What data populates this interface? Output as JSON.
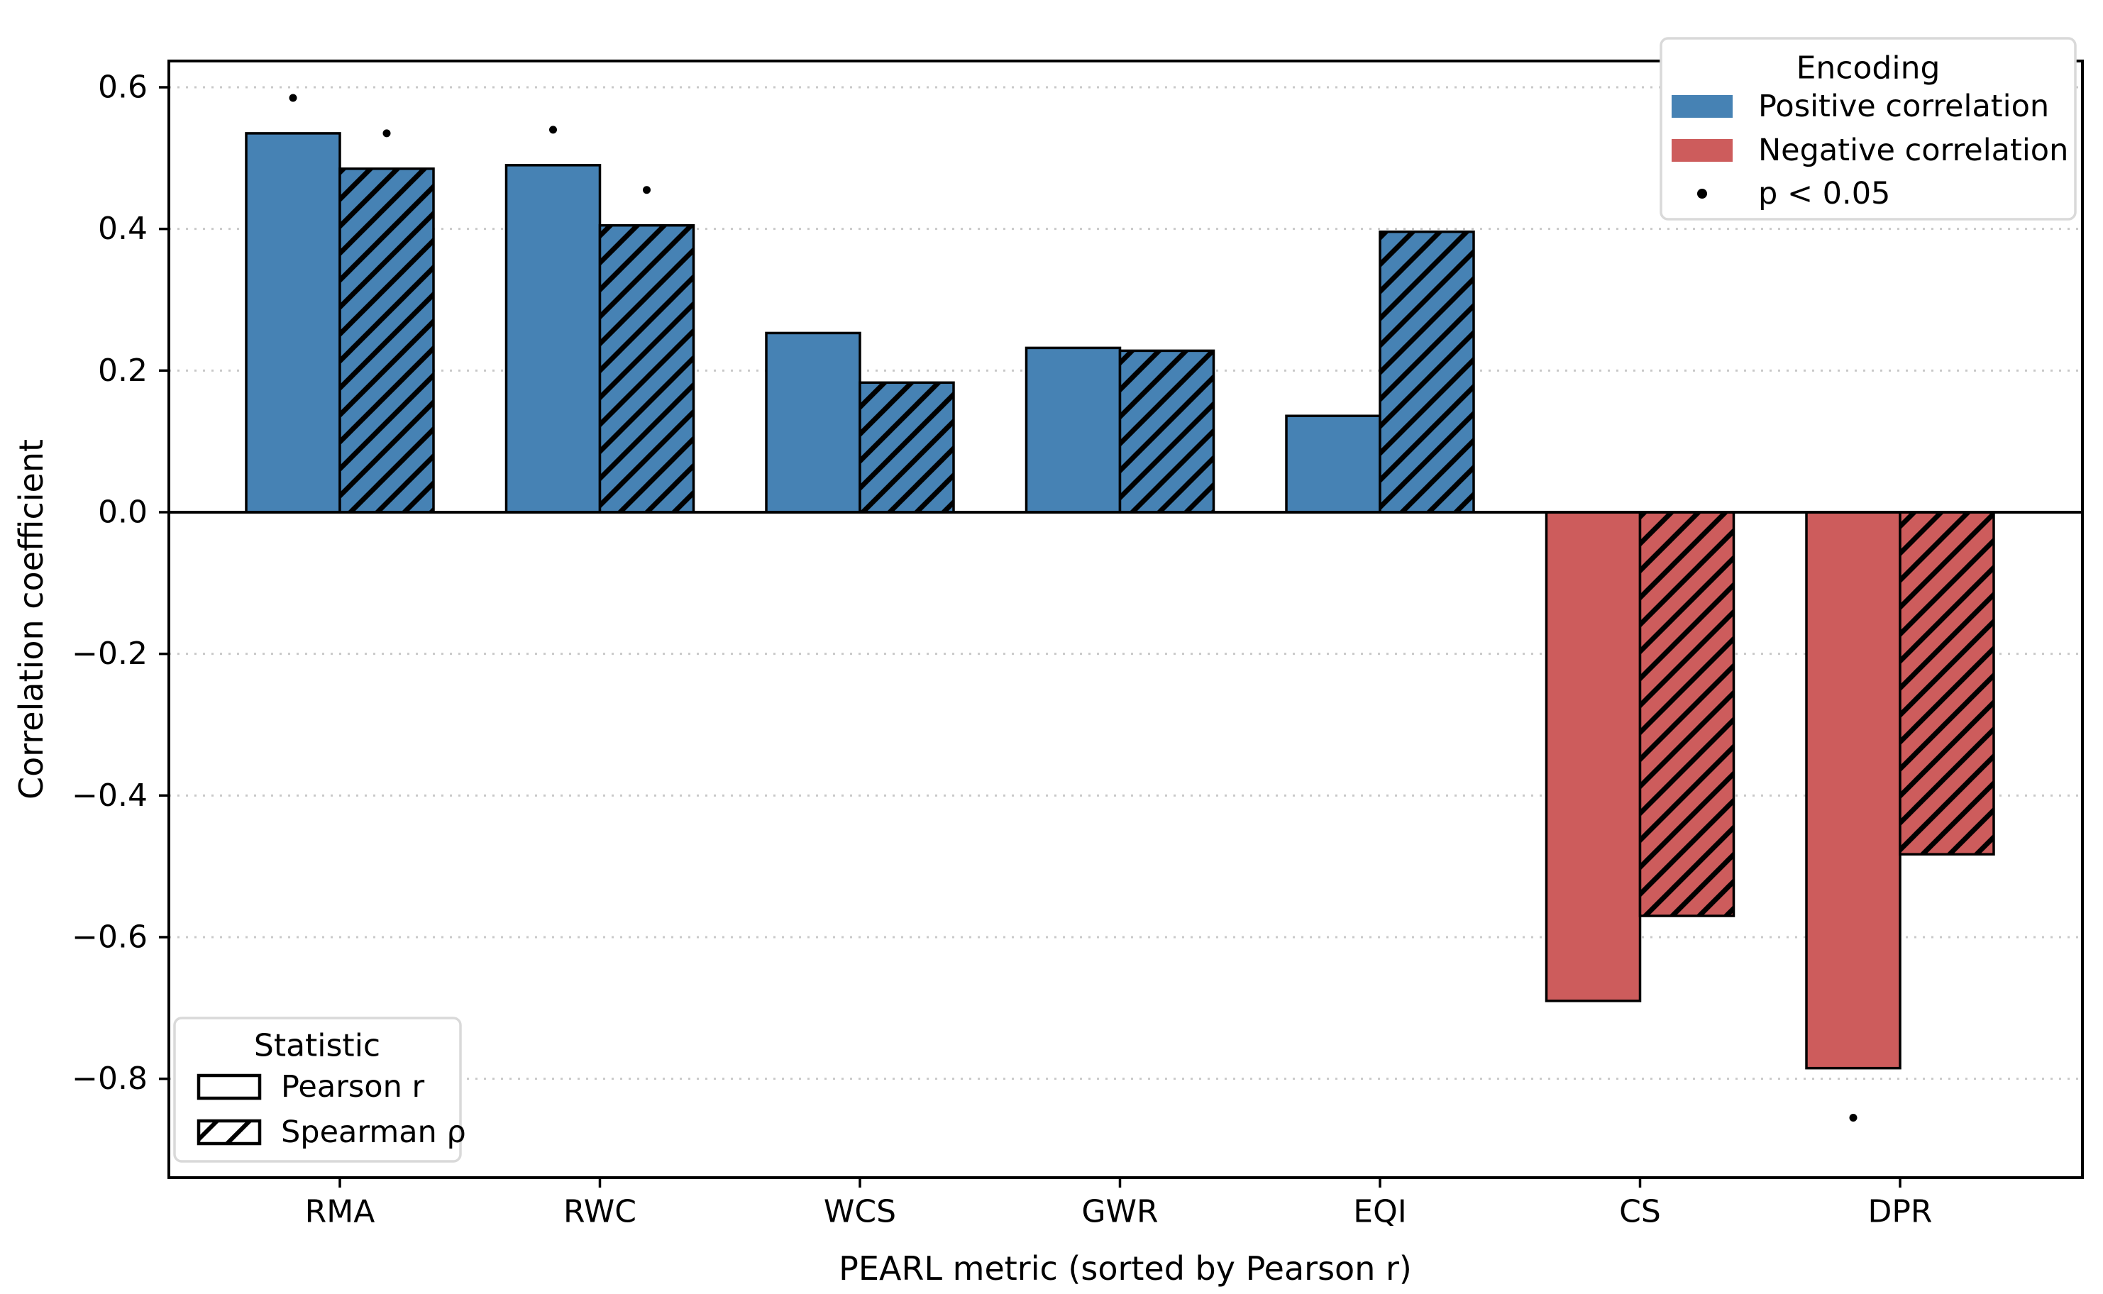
{
  "page": {
    "background": "#ffffff"
  },
  "chart_data": {
    "type": "bar",
    "title": "",
    "xlabel": "PEARL metric (sorted by Pearson r)",
    "ylabel": "Correlation coefficient",
    "categories": [
      "RMA",
      "RWC",
      "WCS",
      "GWR",
      "EQI",
      "CS",
      "DPR"
    ],
    "series": [
      {
        "name": "Pearson r",
        "slug": "pearson-r",
        "hatch": "none",
        "values": [
          0.535,
          0.49,
          0.253,
          0.232,
          0.136,
          -0.69,
          -0.785
        ]
      },
      {
        "name": "Spearman ρ",
        "slug": "spearman-rho",
        "hatch": "diagonal",
        "values": [
          0.485,
          0.405,
          0.183,
          0.228,
          0.396,
          -0.57,
          -0.483
        ]
      }
    ],
    "significance_markers": [
      {
        "category": "RMA",
        "series": "pearson-r",
        "value": 0.585
      },
      {
        "category": "RMA",
        "series": "spearman-rho",
        "value": 0.535
      },
      {
        "category": "RWC",
        "series": "pearson-r",
        "value": 0.54
      },
      {
        "category": "RWC",
        "series": "spearman-rho",
        "value": 0.455
      },
      {
        "category": "DPR",
        "series": "pearson-r",
        "value": -0.855
      }
    ],
    "ylim": [
      -0.94,
      0.636
    ],
    "yticks": [
      0.6,
      0.4,
      0.2,
      0.0,
      -0.2,
      -0.4,
      -0.6,
      -0.8
    ],
    "ytick_labels": [
      "0.6",
      "0.4",
      "0.2",
      "0.0",
      "−0.2",
      "−0.4",
      "−0.6",
      "−0.8"
    ],
    "grid": {
      "axis": "y",
      "style": "dotted",
      "color": "#c9c9c9"
    },
    "zero_line": {
      "show": true,
      "color": "#000000"
    },
    "colors": {
      "positive": "#4682b4",
      "negative": "#cd5c5c",
      "edge": "#000000",
      "marker": "#000000",
      "legend_border": "#d9d9d9"
    },
    "legend_encoding": {
      "title": "Encoding",
      "entries": [
        {
          "label": "Positive correlation",
          "swatch": "positive"
        },
        {
          "label": "Negative correlation",
          "swatch": "negative"
        },
        {
          "label": "p < 0.05",
          "swatch": "dot"
        }
      ],
      "position": "upper right"
    },
    "legend_statistic": {
      "title": "Statistic",
      "entries": [
        {
          "label": "Pearson r",
          "swatch": "plain"
        },
        {
          "label": "Spearman ρ",
          "swatch": "hatched"
        }
      ],
      "position": "lower left"
    }
  }
}
